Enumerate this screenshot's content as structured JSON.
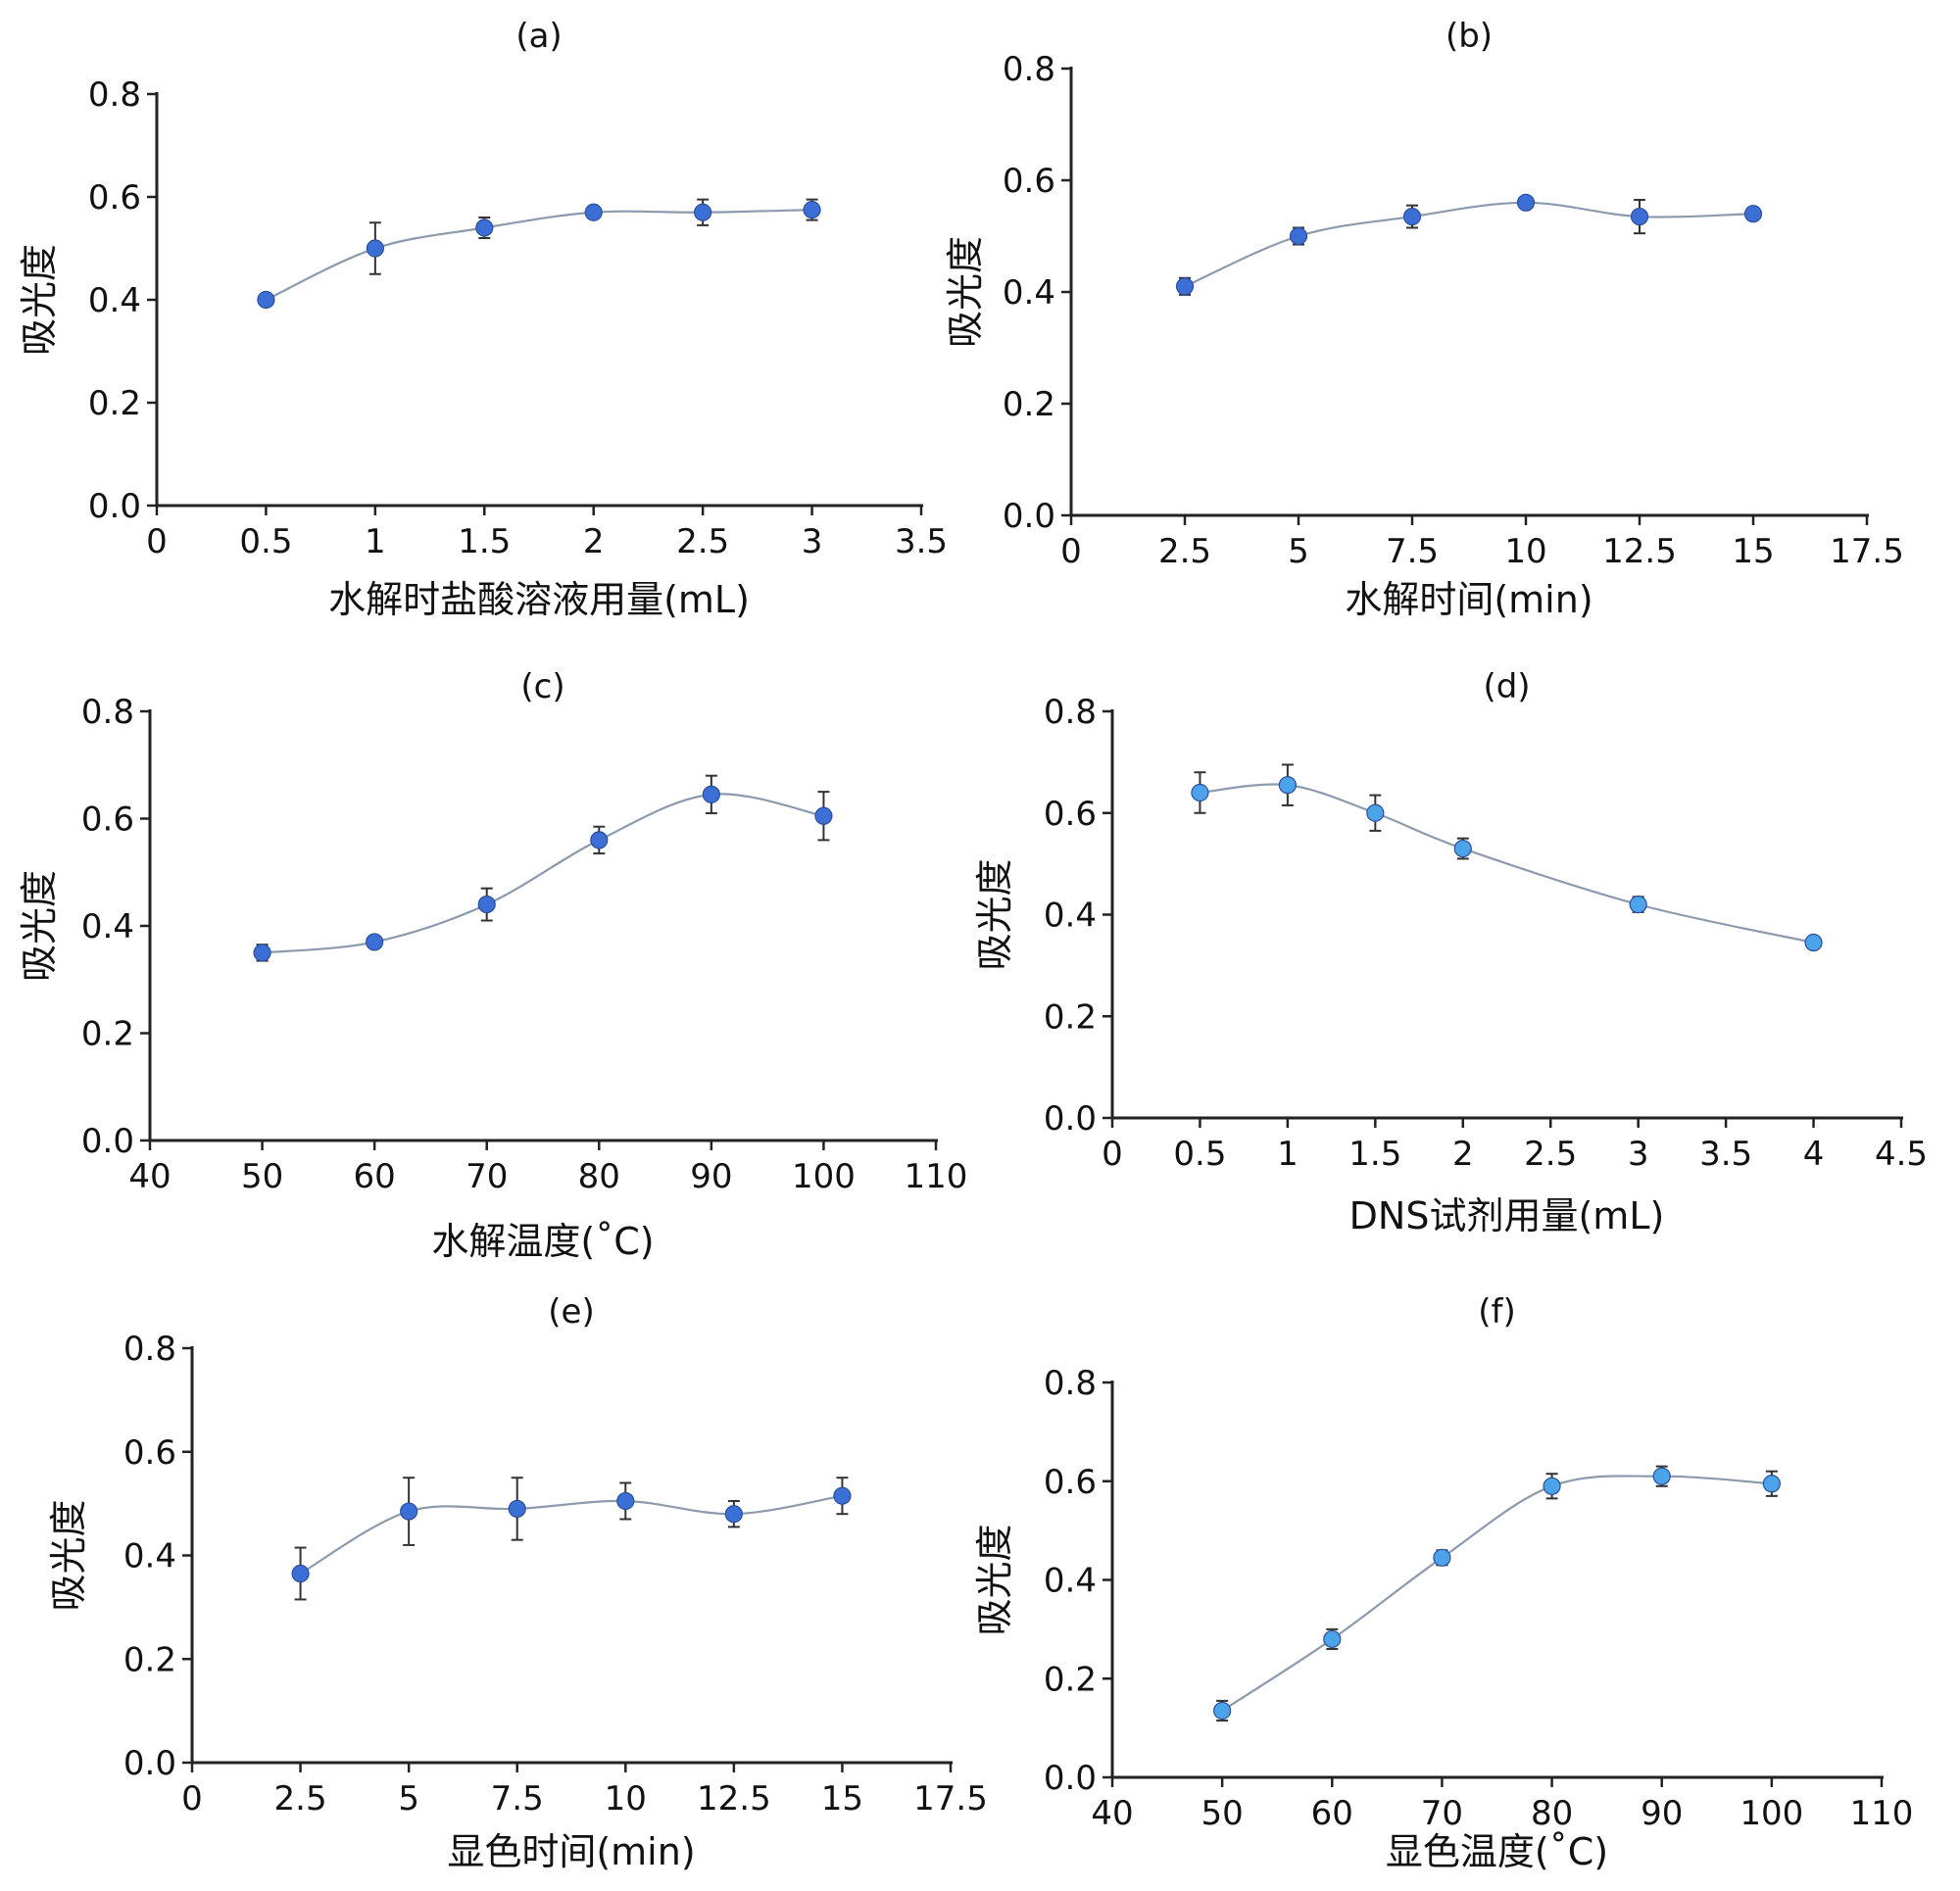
{
  "chart_data": [
    {
      "type": "line",
      "panel": "(a)",
      "title": "(a)",
      "xlabel": "水解时盐酸溶液用量(mL)",
      "ylabel": "吸光度",
      "xlim": [
        0,
        3.5
      ],
      "ylim": [
        0.0,
        0.8
      ],
      "xticks": [
        "0",
        "0.5",
        "1",
        "1.5",
        "2",
        "2.5",
        "3",
        "3.5"
      ],
      "yticks": [
        "0.0",
        "0.2",
        "0.4",
        "0.6",
        "0.8"
      ],
      "marker_color": "#3b6fd6",
      "series": [
        {
          "name": "吸光度",
          "x": [
            0.5,
            1,
            1.5,
            2,
            2.5,
            3
          ],
          "y": [
            0.4,
            0.5,
            0.54,
            0.57,
            0.57,
            0.575
          ],
          "error": [
            0.0,
            0.05,
            0.02,
            0.01,
            0.025,
            0.02
          ]
        }
      ]
    },
    {
      "type": "line",
      "panel": "(b)",
      "title": "(b)",
      "xlabel": "水解时间(min)",
      "ylabel": "吸光度",
      "xlim": [
        0,
        17.5
      ],
      "ylim": [
        0.0,
        0.8
      ],
      "xticks": [
        "0",
        "2.5",
        "5",
        "7.5",
        "10",
        "12.5",
        "15",
        "17.5"
      ],
      "yticks": [
        "0.0",
        "0.2",
        "0.4",
        "0.6",
        "0.8"
      ],
      "marker_color": "#3b6fd6",
      "series": [
        {
          "name": "吸光度",
          "x": [
            2.5,
            5,
            7.5,
            10,
            12.5,
            15
          ],
          "y": [
            0.41,
            0.5,
            0.535,
            0.56,
            0.535,
            0.54
          ],
          "error": [
            0.015,
            0.015,
            0.02,
            0.005,
            0.03,
            0.005
          ]
        }
      ]
    },
    {
      "type": "line",
      "panel": "(c)",
      "title": "(c)",
      "xlabel": "水解温度(˚C)",
      "ylabel": "吸光度",
      "xlim": [
        40,
        110
      ],
      "ylim": [
        0.0,
        0.8
      ],
      "xticks": [
        "40",
        "50",
        "60",
        "70",
        "80",
        "90",
        "100",
        "110"
      ],
      "yticks": [
        "0.0",
        "0.2",
        "0.4",
        "0.6",
        "0.8"
      ],
      "marker_color": "#3b6fd6",
      "series": [
        {
          "name": "吸光度",
          "x": [
            50,
            60,
            70,
            80,
            90,
            100
          ],
          "y": [
            0.35,
            0.37,
            0.44,
            0.56,
            0.645,
            0.605
          ],
          "error": [
            0.015,
            0.005,
            0.03,
            0.025,
            0.035,
            0.045
          ]
        }
      ]
    },
    {
      "type": "line",
      "panel": "(d)",
      "title": "(d)",
      "xlabel": "DNS试剂用量(mL)",
      "ylabel": "吸光度",
      "xlim": [
        0,
        4.5
      ],
      "ylim": [
        0.0,
        0.8
      ],
      "xticks": [
        "0",
        "0.5",
        "1",
        "1.5",
        "2",
        "2.5",
        "3",
        "3.5",
        "4",
        "4.5"
      ],
      "yticks": [
        "0.0",
        "0.2",
        "0.4",
        "0.6",
        "0.8"
      ],
      "marker_color": "#4da3ea",
      "series": [
        {
          "name": "吸光度",
          "x": [
            0.5,
            1,
            1.5,
            2,
            3,
            4
          ],
          "y": [
            0.64,
            0.655,
            0.6,
            0.53,
            0.42,
            0.345
          ],
          "error": [
            0.04,
            0.04,
            0.035,
            0.02,
            0.015,
            0.005
          ]
        }
      ]
    },
    {
      "type": "line",
      "panel": "(e)",
      "title": "(e)",
      "xlabel": "显色时间(min)",
      "ylabel": "吸光度",
      "xlim": [
        0,
        17.5
      ],
      "ylim": [
        0.0,
        0.8
      ],
      "xticks": [
        "0",
        "2.5",
        "5",
        "7.5",
        "10",
        "12.5",
        "15",
        "17.5"
      ],
      "yticks": [
        "0.0",
        "0.2",
        "0.4",
        "0.6",
        "0.8"
      ],
      "marker_color": "#3b6fd6",
      "series": [
        {
          "name": "吸光度",
          "x": [
            2.5,
            5,
            7.5,
            10,
            12.5,
            15
          ],
          "y": [
            0.365,
            0.485,
            0.49,
            0.505,
            0.48,
            0.515
          ],
          "error": [
            0.05,
            0.065,
            0.06,
            0.035,
            0.025,
            0.035
          ]
        }
      ]
    },
    {
      "type": "line",
      "panel": "(f)",
      "title": "(f)",
      "xlabel": "显色温度(˚C)",
      "ylabel": "吸光度",
      "xlim": [
        40,
        110
      ],
      "ylim": [
        0.0,
        0.8
      ],
      "xticks": [
        "40",
        "50",
        "60",
        "70",
        "80",
        "90",
        "100",
        "110"
      ],
      "yticks": [
        "0.0",
        "0.2",
        "0.4",
        "0.6",
        "0.8"
      ],
      "marker_color": "#4da3ea",
      "series": [
        {
          "name": "吸光度",
          "x": [
            50,
            60,
            70,
            80,
            90,
            100
          ],
          "y": [
            0.135,
            0.28,
            0.445,
            0.59,
            0.61,
            0.595
          ],
          "error": [
            0.02,
            0.02,
            0.015,
            0.025,
            0.02,
            0.025
          ]
        }
      ]
    }
  ]
}
